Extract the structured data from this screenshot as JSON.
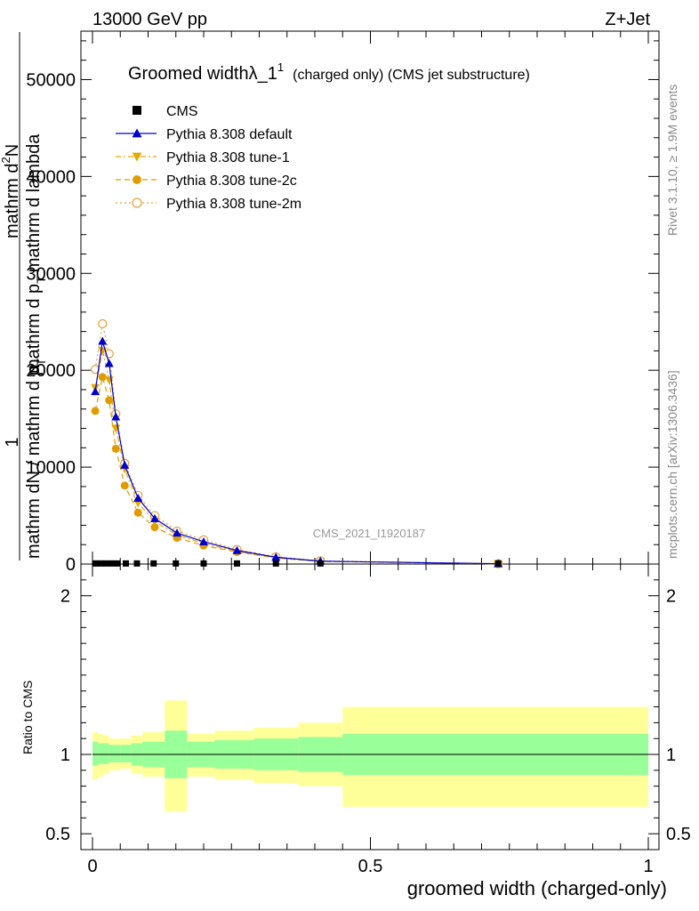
{
  "header": {
    "left": "13000 GeV pp",
    "right": "Z+Jet"
  },
  "title": {
    "main": "Groomed width",
    "lambda": "λ_1",
    "sup": "1",
    "paren": "(charged only) (CMS jet substructure)"
  },
  "side": {
    "rivet": "Rivet 3.1.10, ≥ 1.9M events",
    "mcplots": "mcplots.cern.ch [arXiv:1306.3436]"
  },
  "watermark": "CMS_2021_I1920187",
  "ylabel": {
    "one": "1",
    "denominator": "mathrm dN / mathrm d p",
    "denominator_sub": "T",
    "numerator_a": "mathrm d",
    "numerator_b": "2",
    "numerator_c": "N",
    "lower_a": "mathrm d p",
    "lower_b": "T",
    "lower_c": "mathrm d lambda"
  },
  "ratio_ylabel": "Ratio to CMS",
  "xlabel": "groomed width (charged-only)",
  "colors": {
    "default": "#0000cc",
    "tune1": "#e6a800",
    "tune2c": "#e09b00",
    "tune2m": "#e0a040",
    "band_inner": "#99ff99",
    "band_outer": "#ffff99"
  },
  "chart_data": {
    "type": "line",
    "xlim": [
      0,
      1
    ],
    "ylim_main": [
      0,
      55000
    ],
    "ylim_ratio": [
      0.4,
      2.2
    ],
    "main_yticks": [
      {
        "v": 0,
        "label": "0"
      },
      {
        "v": 10000,
        "label": "10000"
      },
      {
        "v": 20000,
        "label": "20000"
      },
      {
        "v": 30000,
        "label": "30000"
      },
      {
        "v": 40000,
        "label": "40000"
      },
      {
        "v": 50000,
        "label": "50000"
      }
    ],
    "ratio_yticks": [
      {
        "v": 0.5,
        "label": "0.5"
      },
      {
        "v": 1,
        "label": "1"
      },
      {
        "v": 2,
        "label": "2"
      }
    ],
    "xticks": [
      {
        "v": 0,
        "label": "0"
      },
      {
        "v": 0.5,
        "label": "0.5"
      },
      {
        "v": 1,
        "label": "1"
      }
    ],
    "legend": [
      {
        "key": "cms",
        "label": "CMS"
      },
      {
        "key": "default",
        "label": "Pythia 8.308 default"
      },
      {
        "key": "tune1",
        "label": "Pythia 8.308 tune-1"
      },
      {
        "key": "tune2c",
        "label": "Pythia 8.308 tune-2c"
      },
      {
        "key": "tune2m",
        "label": "Pythia 8.308 tune-2m"
      }
    ],
    "cms": {
      "x": [
        0.005,
        0.015,
        0.025,
        0.035,
        0.045,
        0.06,
        0.08,
        0.11,
        0.15,
        0.2,
        0.26,
        0.33,
        0.41,
        0.73
      ],
      "y": [
        60,
        60,
        60,
        60,
        60,
        60,
        60,
        60,
        60,
        60,
        60,
        60,
        60,
        60
      ]
    },
    "series": [
      {
        "key": "default",
        "x": [
          0.005,
          0.018,
          0.03,
          0.042,
          0.058,
          0.082,
          0.112,
          0.152,
          0.2,
          0.26,
          0.33,
          0.41,
          0.73
        ],
        "y": [
          17800,
          23000,
          20700,
          15200,
          10200,
          6800,
          4700,
          3200,
          2300,
          1400,
          700,
          300,
          30
        ]
      },
      {
        "key": "tune1",
        "x": [
          0.005,
          0.018,
          0.03,
          0.042,
          0.058,
          0.082,
          0.112,
          0.152,
          0.2,
          0.26,
          0.33,
          0.41,
          0.73
        ],
        "y": [
          18200,
          22000,
          19000,
          14000,
          9800,
          6300,
          4400,
          3000,
          2100,
          1300,
          650,
          280,
          30
        ]
      },
      {
        "key": "tune2c",
        "x": [
          0.005,
          0.018,
          0.03,
          0.042,
          0.058,
          0.082,
          0.112,
          0.152,
          0.2,
          0.26,
          0.33,
          0.41,
          0.73
        ],
        "y": [
          15800,
          19300,
          16900,
          11900,
          8100,
          5300,
          3800,
          2700,
          1900,
          1250,
          620,
          270,
          28
        ]
      },
      {
        "key": "tune2m",
        "x": [
          0.005,
          0.018,
          0.03,
          0.042,
          0.058,
          0.082,
          0.112,
          0.152,
          0.2,
          0.26,
          0.33,
          0.41,
          0.73
        ],
        "y": [
          20100,
          24800,
          21700,
          15500,
          10400,
          7100,
          5000,
          3400,
          2500,
          1500,
          750,
          320,
          32
        ]
      }
    ],
    "ratio_bands": [
      {
        "x0": 0.0,
        "x1": 0.01,
        "inner": [
          0.93,
          1.08
        ],
        "outer": [
          0.84,
          1.14
        ]
      },
      {
        "x0": 0.01,
        "x1": 0.02,
        "inner": [
          0.94,
          1.07
        ],
        "outer": [
          0.86,
          1.13
        ]
      },
      {
        "x0": 0.02,
        "x1": 0.03,
        "inner": [
          0.94,
          1.07
        ],
        "outer": [
          0.88,
          1.12
        ]
      },
      {
        "x0": 0.03,
        "x1": 0.05,
        "inner": [
          0.95,
          1.06
        ],
        "outer": [
          0.9,
          1.1
        ]
      },
      {
        "x0": 0.05,
        "x1": 0.07,
        "inner": [
          0.95,
          1.06
        ],
        "outer": [
          0.91,
          1.1
        ]
      },
      {
        "x0": 0.07,
        "x1": 0.09,
        "inner": [
          0.93,
          1.07
        ],
        "outer": [
          0.88,
          1.12
        ]
      },
      {
        "x0": 0.09,
        "x1": 0.13,
        "inner": [
          0.92,
          1.08
        ],
        "outer": [
          0.86,
          1.14
        ]
      },
      {
        "x0": 0.13,
        "x1": 0.17,
        "inner": [
          0.85,
          1.15
        ],
        "outer": [
          0.64,
          1.34
        ]
      },
      {
        "x0": 0.17,
        "x1": 0.22,
        "inner": [
          0.92,
          1.08
        ],
        "outer": [
          0.86,
          1.13
        ]
      },
      {
        "x0": 0.22,
        "x1": 0.29,
        "inner": [
          0.91,
          1.09
        ],
        "outer": [
          0.84,
          1.15
        ]
      },
      {
        "x0": 0.29,
        "x1": 0.37,
        "inner": [
          0.9,
          1.1
        ],
        "outer": [
          0.82,
          1.17
        ]
      },
      {
        "x0": 0.37,
        "x1": 0.45,
        "inner": [
          0.89,
          1.11
        ],
        "outer": [
          0.8,
          1.2
        ]
      },
      {
        "x0": 0.45,
        "x1": 1.0,
        "inner": [
          0.87,
          1.13
        ],
        "outer": [
          0.67,
          1.3
        ]
      }
    ]
  }
}
